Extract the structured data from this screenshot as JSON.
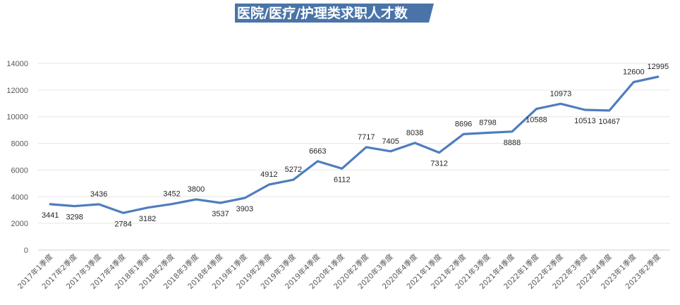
{
  "chart_data": {
    "type": "line",
    "title": "医院/医疗/护理类求职人才数",
    "xlabel": "",
    "ylabel": "",
    "ylim": [
      0,
      14000
    ],
    "yticks": [
      0,
      2000,
      4000,
      6000,
      8000,
      10000,
      12000,
      14000
    ],
    "grid": true,
    "legend": "none",
    "categories": [
      "2017年1季度",
      "2017年2季度",
      "2017年3季度",
      "2017年4季度",
      "2018年1季度",
      "2018年2季度",
      "2018年3季度",
      "2018年4季度",
      "2019年1季度",
      "2019年2季度",
      "2019年3季度",
      "2019年4季度",
      "2020年1季度",
      "2020年2季度",
      "2020年3季度",
      "2020年4季度",
      "2021年1季度",
      "2021年2季度",
      "2021年3季度",
      "2021年4季度",
      "2022年1季度",
      "2022年2季度",
      "2022年3季度",
      "2022年4季度",
      "2023年1季度",
      "2023年2季度"
    ],
    "series": [
      {
        "values": [
          3441,
          3298,
          3436,
          2784,
          3182,
          3452,
          3800,
          3537,
          3903,
          4912,
          5272,
          6663,
          6112,
          7717,
          7405,
          8038,
          7312,
          8696,
          8798,
          8888,
          10588,
          10973,
          10513,
          10467,
          12600,
          12995
        ],
        "color": "#4f7dbf",
        "label_position": [
          "below",
          "below",
          "above",
          "below",
          "below",
          "above",
          "above",
          "below",
          "below",
          "above",
          "above",
          "above",
          "below",
          "above",
          "above",
          "above",
          "below",
          "above",
          "above",
          "below",
          "below",
          "above",
          "below",
          "below",
          "above",
          "above"
        ]
      }
    ],
    "title_bg_color": "#4a74a8"
  }
}
